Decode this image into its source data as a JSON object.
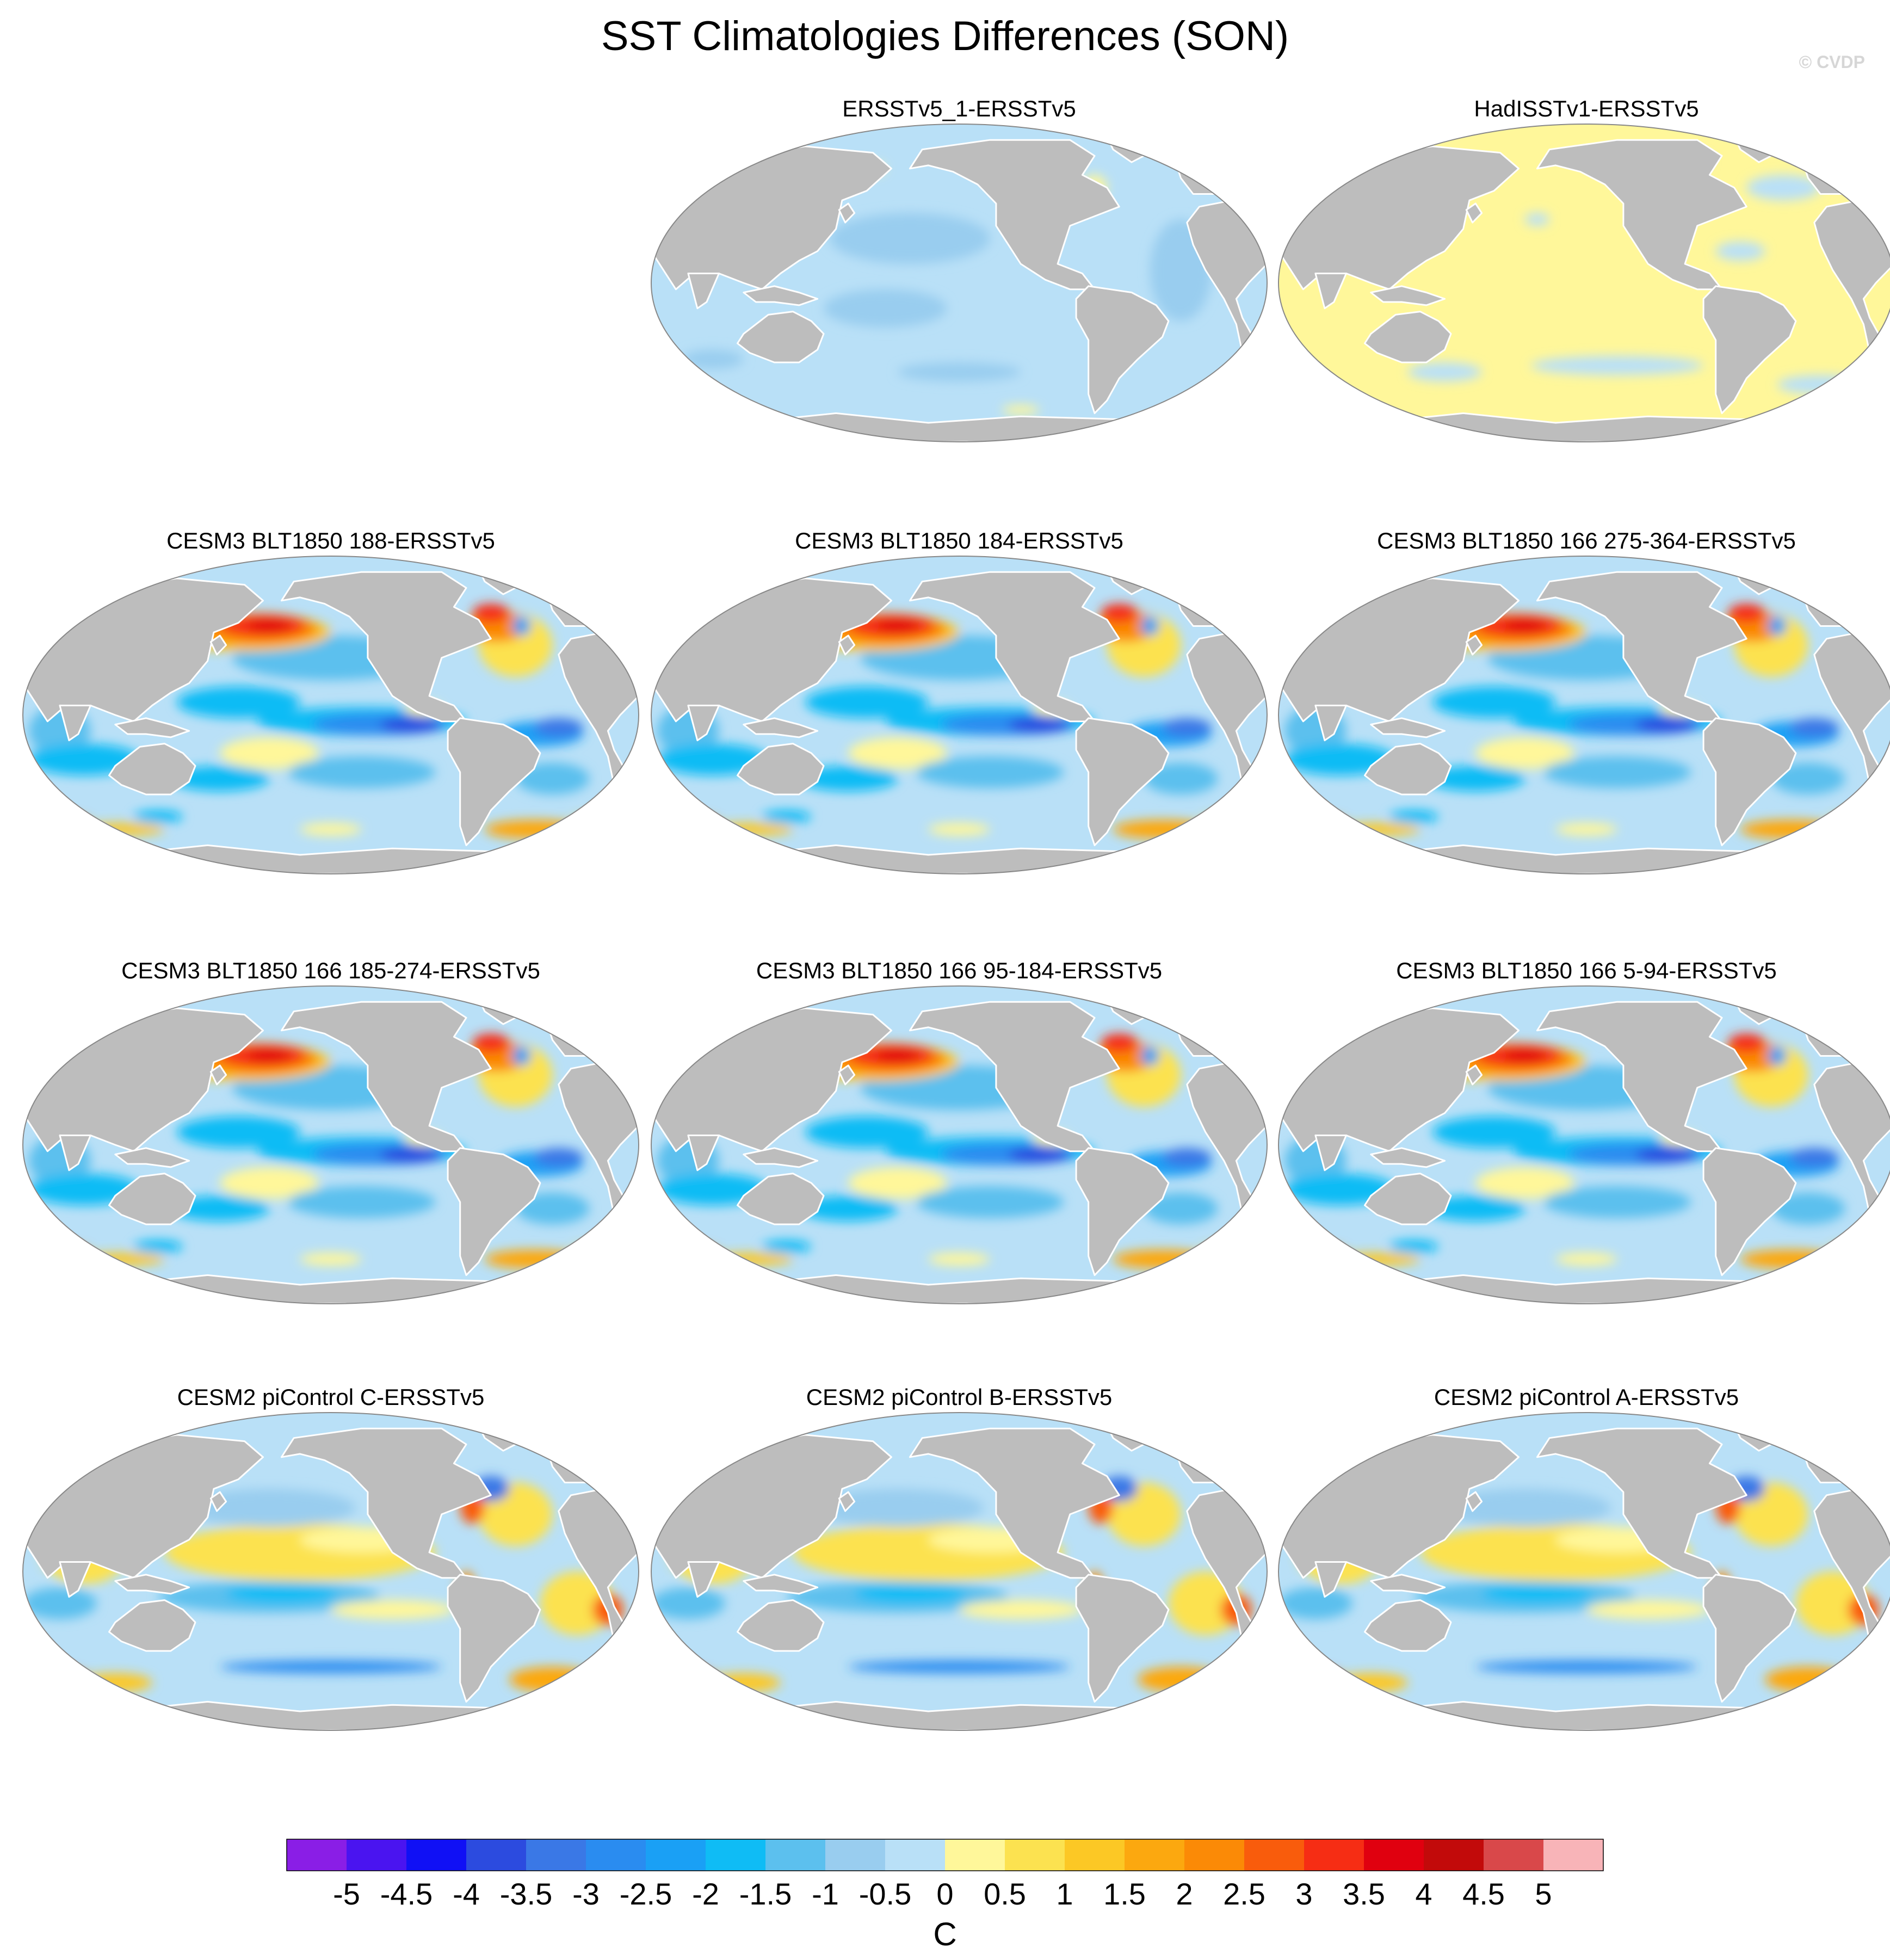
{
  "title": "SST Climatologies Differences (SON)",
  "credit": "© CVDP",
  "colors": {
    "land": "#bdbdbd",
    "ocean_base_neutral_neg": "#b9dcf4",
    "coast": "#ffffff",
    "outline": "#888888"
  },
  "panels": [
    {
      "id": "p1",
      "title": "ERSSTv5_1-ERSSTv5",
      "pattern": "obs_cool",
      "row": 0,
      "col": 1
    },
    {
      "id": "p2",
      "title": "HadISSTv1-ERSSTv5",
      "pattern": "obs_warm",
      "row": 0,
      "col": 2
    },
    {
      "id": "p3",
      "title": "CESM3 BLT1850 188-ERSSTv5",
      "pattern": "cesm3",
      "row": 1,
      "col": 0
    },
    {
      "id": "p4",
      "title": "CESM3 BLT1850 184-ERSSTv5",
      "pattern": "cesm3",
      "row": 1,
      "col": 1
    },
    {
      "id": "p5",
      "title": "CESM3 BLT1850 166 275-364-ERSSTv5",
      "pattern": "cesm3",
      "row": 1,
      "col": 2
    },
    {
      "id": "p6",
      "title": "CESM3 BLT1850 166 185-274-ERSSTv5",
      "pattern": "cesm3",
      "row": 2,
      "col": 0
    },
    {
      "id": "p7",
      "title": "CESM3 BLT1850 166 95-184-ERSSTv5",
      "pattern": "cesm3",
      "row": 2,
      "col": 1
    },
    {
      "id": "p8",
      "title": "CESM3 BLT1850 166 5-94-ERSSTv5",
      "pattern": "cesm3",
      "row": 2,
      "col": 2
    },
    {
      "id": "p9",
      "title": "CESM2 piControl C-ERSSTv5",
      "pattern": "cesm2",
      "row": 3,
      "col": 0
    },
    {
      "id": "p10",
      "title": "CESM2 piControl B-ERSSTv5",
      "pattern": "cesm2",
      "row": 3,
      "col": 1
    },
    {
      "id": "p11",
      "title": "CESM2 piControl A-ERSSTv5",
      "pattern": "cesm2",
      "row": 3,
      "col": 2
    }
  ],
  "colorbar": {
    "unit": "C",
    "labels": [
      "-5",
      "-4.5",
      "-4",
      "-3.5",
      "-3",
      "-2.5",
      "-2",
      "-1.5",
      "-1",
      "-0.5",
      "0",
      "0.5",
      "1",
      "1.5",
      "2",
      "2.5",
      "3",
      "3.5",
      "4",
      "4.5",
      "5"
    ],
    "colors": [
      "#8a1ee6",
      "#4a14f0",
      "#1010f5",
      "#2c4bdf",
      "#3a78e6",
      "#2a8cf0",
      "#1aa0f5",
      "#0fbcf5",
      "#5cc0ee",
      "#99cdef",
      "#b9e0f7",
      "#fff79a",
      "#fce250",
      "#fcc825",
      "#fca80f",
      "#fb8a06",
      "#f95c0c",
      "#f62d14",
      "#e0000f",
      "#c20a0a",
      "#d9484a",
      "#f8b4b8"
    ]
  }
}
